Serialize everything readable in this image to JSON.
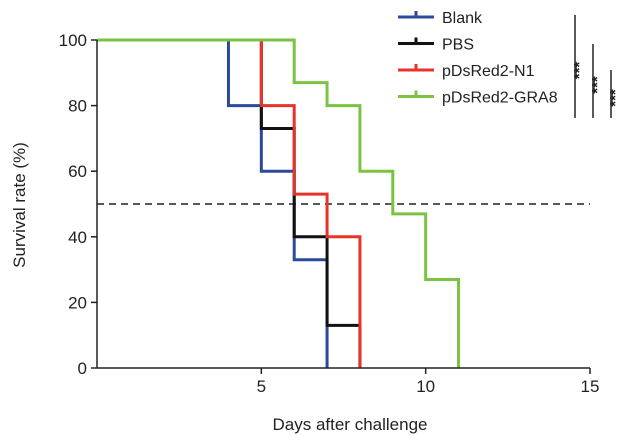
{
  "chart_data": {
    "type": "line",
    "subtype": "step-survival",
    "title": "",
    "xlabel": "Days after challenge",
    "ylabel": "Survival rate (%)",
    "xlim": [
      0,
      15
    ],
    "ylim": [
      0,
      100
    ],
    "xticks": [
      5,
      10,
      15
    ],
    "yticks": [
      0,
      20,
      40,
      60,
      80,
      100
    ],
    "reference_line": {
      "y": 50,
      "style": "dashed"
    },
    "series": [
      {
        "name": "Blank",
        "color": "#2b4a9b",
        "x": [
          0,
          4,
          5,
          6,
          7,
          7
        ],
        "y": [
          100,
          80,
          60,
          33,
          0,
          0
        ]
      },
      {
        "name": "PBS",
        "color": "#111111",
        "x": [
          0,
          5,
          6,
          7,
          8,
          8
        ],
        "y": [
          100,
          73,
          40,
          13,
          0,
          0
        ]
      },
      {
        "name": "pDsRed2-N1",
        "color": "#e8332a",
        "x": [
          0,
          5,
          6,
          7,
          8,
          8
        ],
        "y": [
          100,
          80,
          53,
          40,
          13,
          0
        ]
      },
      {
        "name": "pDsRed2-GRA8",
        "color": "#7cc242",
        "x": [
          0,
          6,
          7,
          8,
          9,
          10,
          11,
          11
        ],
        "y": [
          100,
          87,
          80,
          60,
          47,
          27,
          0,
          0
        ]
      }
    ],
    "significance": [
      {
        "label": "***",
        "between": [
          "Blank",
          "pDsRed2-GRA8"
        ]
      },
      {
        "label": "***",
        "between": [
          "PBS",
          "pDsRed2-GRA8"
        ]
      },
      {
        "label": "***",
        "between": [
          "pDsRed2-N1",
          "pDsRed2-GRA8"
        ]
      }
    ],
    "legend": "top-right"
  }
}
